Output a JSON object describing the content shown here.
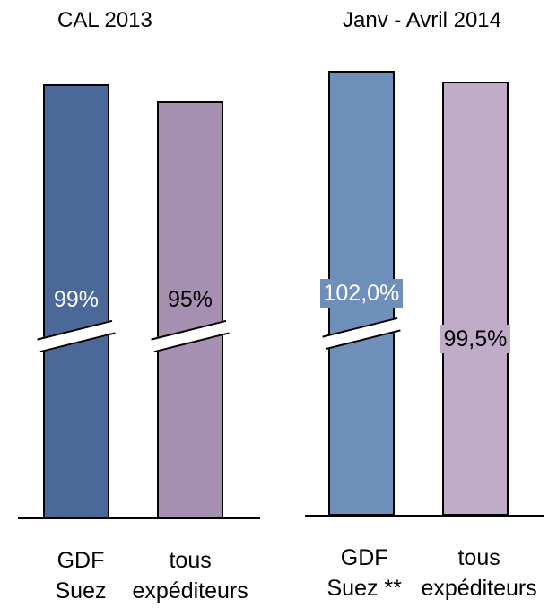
{
  "chart_data": [
    {
      "type": "bar",
      "title": "CAL 2013",
      "categories": [
        "GDF Suez",
        "tous expéditeurs"
      ],
      "category_lines": [
        [
          "GDF",
          "Suez"
        ],
        [
          "tous",
          "expéditeurs"
        ]
      ],
      "values": [
        99,
        95
      ],
      "data_labels": [
        "99%",
        "95%"
      ],
      "colors": [
        "#4a6898",
        "#a690b2"
      ],
      "label_style": "text",
      "axis_broken": true,
      "ylim": [
        0,
        100
      ],
      "grid": false,
      "xlabel": "",
      "ylabel": ""
    },
    {
      "type": "bar",
      "title": "Janv - Avril 2014",
      "categories": [
        "GDF Suez **",
        "tous expéditeurs"
      ],
      "category_lines": [
        [
          "GDF",
          "Suez **"
        ],
        [
          "tous",
          "expéditeurs"
        ]
      ],
      "values": [
        102.0,
        99.5
      ],
      "data_labels": [
        "102,0%",
        "99,5%"
      ],
      "colors": [
        "#6f8fbb",
        "#c0abc8"
      ],
      "label_style": "filled",
      "axis_broken": true,
      "ylim": [
        0,
        102
      ],
      "grid": false,
      "xlabel": "",
      "ylabel": ""
    }
  ]
}
